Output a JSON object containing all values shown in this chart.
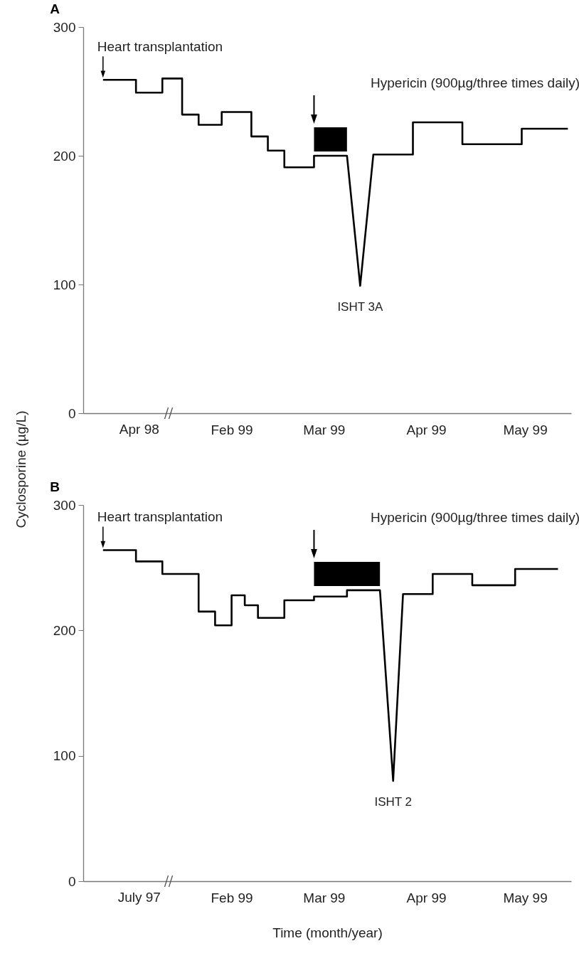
{
  "chart_data": [
    {
      "type": "line",
      "title": "A",
      "ylabel": "Cyclosporine (µg/L)",
      "xlim": [
        "1998-12-18",
        "1999-05-15"
      ],
      "ylim": [
        0,
        300
      ],
      "yticks": [
        0,
        100,
        200,
        300
      ],
      "xticks": [
        {
          "value": "1999-02",
          "label": "Feb 99"
        },
        {
          "value": "1999-03",
          "label": "Mar 99"
        },
        {
          "value": "1999-04",
          "label": "Apr 99"
        },
        {
          "value": "1999-05",
          "label": "May 99"
        }
      ],
      "line_style": "solid",
      "series": [
        {
          "color": "#000000",
          "x": [
            "1998-12-24",
            "1999-01-03",
            "1999-01-03",
            "1999-01-11",
            "1999-01-11",
            "1999-01-17",
            "1999-01-17",
            "1999-01-22",
            "1999-01-22",
            "1999-01-29",
            "1999-01-29",
            "1999-02-07",
            "1999-02-07",
            "1999-02-12",
            "1999-02-12",
            "1999-02-17",
            "1999-02-17",
            "1999-02-26",
            "1999-02-26",
            "1999-03-08",
            "1999-03-12",
            "1999-03-16",
            "1999-03-28",
            "1999-03-28",
            "1999-04-12",
            "1999-04-12",
            "1999-04-30",
            "1999-04-30",
            "1999-05-14"
          ],
          "values": [
            259,
            259,
            249,
            249,
            260,
            260,
            232,
            232,
            224,
            224,
            234,
            234,
            215,
            215,
            204,
            204,
            191,
            191,
            200,
            200,
            99,
            201,
            201,
            226,
            226,
            209,
            209,
            221,
            221
          ]
        }
      ],
      "bands": [
        {
          "axis": "x",
          "from": "1999-02-26",
          "to": "1999-03-08",
          "label": "Hypericin (900µg/three times daily)",
          "color": "#000000"
        }
      ],
      "annotations": [
        "Apr 98",
        {
          "text": "Heart transplantation",
          "x": "1998-12-24",
          "y": 259
        },
        {
          "text": "ISHT 3A",
          "x": "1999-03-12",
          "y": 99
        }
      ]
    },
    {
      "type": "line",
      "title": "B",
      "xlabel": "Time (month/year)",
      "xlim": [
        "1998-12-18",
        "1999-05-15"
      ],
      "ylim": [
        0,
        300
      ],
      "yticks": [
        0,
        100,
        200,
        300
      ],
      "xticks": [
        {
          "value": "1999-02",
          "label": "Feb 99"
        },
        {
          "value": "1999-03",
          "label": "Mar 99"
        },
        {
          "value": "1999-04",
          "label": "Apr 99"
        },
        {
          "value": "1999-05",
          "label": "May 99"
        }
      ],
      "line_style": "solid",
      "series": [
        {
          "color": "#000000",
          "x": [
            "1998-12-24",
            "1999-01-03",
            "1999-01-03",
            "1999-01-11",
            "1999-01-11",
            "1999-01-22",
            "1999-01-22",
            "1999-01-27",
            "1999-01-27",
            "1999-02-01",
            "1999-02-01",
            "1999-02-05",
            "1999-02-05",
            "1999-02-09",
            "1999-02-09",
            "1999-02-17",
            "1999-02-17",
            "1999-02-26",
            "1999-02-26",
            "1999-03-08",
            "1999-03-08",
            "1999-03-18",
            "1999-03-22",
            "1999-03-25",
            "1999-04-03",
            "1999-04-03",
            "1999-04-15",
            "1999-04-15",
            "1999-04-28",
            "1999-04-28",
            "1999-05-11"
          ],
          "values": [
            264,
            264,
            255,
            255,
            245,
            245,
            215,
            215,
            204,
            204,
            228,
            228,
            220,
            220,
            210,
            210,
            224,
            224,
            227,
            227,
            232,
            232,
            80,
            229,
            229,
            245,
            245,
            236,
            236,
            249,
            249
          ]
        }
      ],
      "bands": [
        {
          "axis": "x",
          "from": "1999-02-26",
          "to": "1999-03-18",
          "label": "Hypericin (900µg/three times daily)",
          "color": "#000000"
        }
      ],
      "annotations": [
        "July 97",
        {
          "text": "Heart transplantation",
          "x": "1998-12-24",
          "y": 264
        },
        {
          "text": "ISHT 2",
          "x": "1999-03-22",
          "y": 80
        }
      ]
    }
  ]
}
